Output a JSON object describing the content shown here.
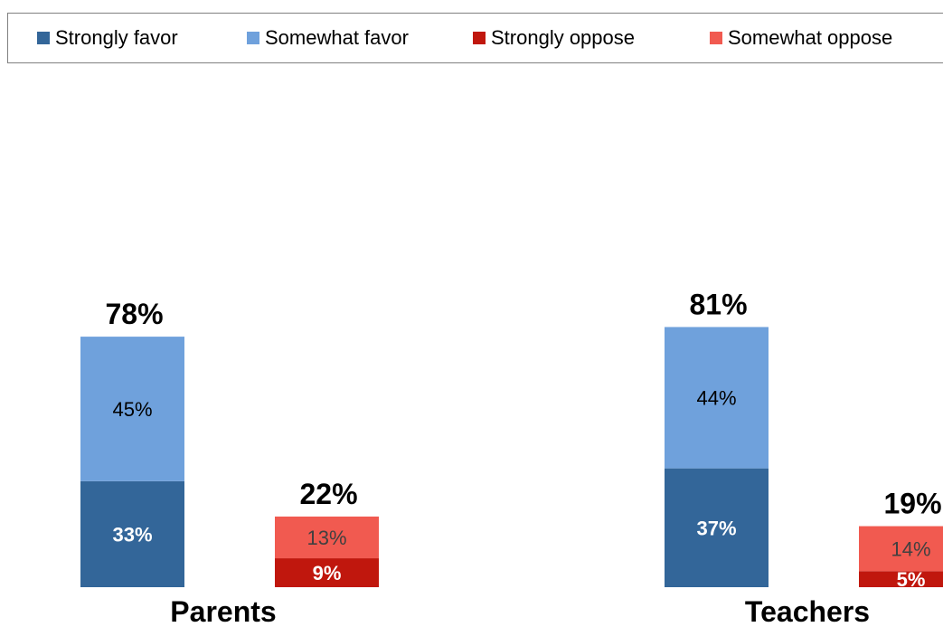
{
  "legend": [
    {
      "label": "Strongly favor",
      "color": "#336699"
    },
    {
      "label": "Somewhat favor",
      "color": "#6fa1dc"
    },
    {
      "label": "Strongly oppose",
      "color": "#c0170d"
    },
    {
      "label": "Somewhat oppose",
      "color": "#f15a50"
    }
  ],
  "chart_data": {
    "type": "bar",
    "stacked": true,
    "categories": [
      "Parents",
      "Teachers"
    ],
    "groups": [
      {
        "category": "Parents",
        "favor": {
          "total_label": "78%",
          "segments": [
            {
              "series": "Strongly favor",
              "value": 33,
              "label": "33%",
              "color": "#336699",
              "label_color": "#ffffff",
              "bold": true
            },
            {
              "series": "Somewhat favor",
              "value": 45,
              "label": "45%",
              "color": "#6fa1dc",
              "label_color": "#000000",
              "bold": false
            }
          ]
        },
        "oppose": {
          "total_label": "22%",
          "segments": [
            {
              "series": "Strongly oppose",
              "value": 9,
              "label": "9%",
              "color": "#c0170d",
              "label_color": "#ffffff",
              "bold": true
            },
            {
              "series": "Somewhat oppose",
              "value": 13,
              "label": "13%",
              "color": "#f15a50",
              "label_color": "#404040",
              "bold": false
            }
          ]
        }
      },
      {
        "category": "Teachers",
        "favor": {
          "total_label": "81%",
          "segments": [
            {
              "series": "Strongly favor",
              "value": 37,
              "label": "37%",
              "color": "#336699",
              "label_color": "#ffffff",
              "bold": true
            },
            {
              "series": "Somewhat favor",
              "value": 44,
              "label": "44%",
              "color": "#6fa1dc",
              "label_color": "#000000",
              "bold": false
            }
          ]
        },
        "oppose": {
          "total_label": "19%",
          "segments": [
            {
              "series": "Strongly oppose",
              "value": 5,
              "label": "5%",
              "color": "#c0170d",
              "label_color": "#ffffff",
              "bold": true
            },
            {
              "series": "Somewhat oppose",
              "value": 14,
              "label": "14%",
              "color": "#f15a50",
              "label_color": "#404040",
              "bold": false
            }
          ]
        }
      }
    ]
  }
}
